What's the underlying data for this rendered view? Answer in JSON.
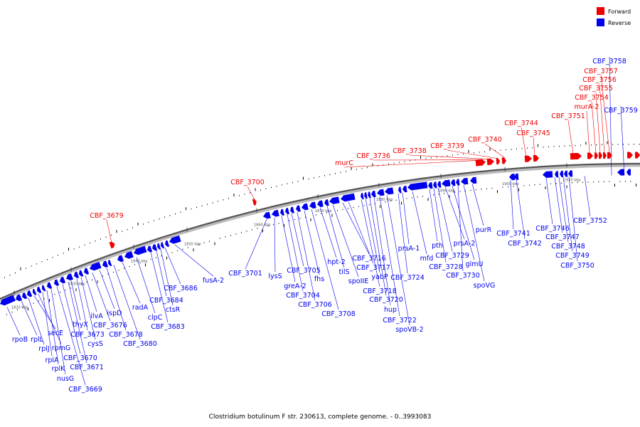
{
  "caption": "Clostridium botulinum F str. 230613, complete genome. - 0..3993083",
  "legend": [
    {
      "label": "Forward",
      "color": "#ee0000"
    },
    {
      "label": "Reverse",
      "color": "#0000ee"
    }
  ],
  "scale_ticks": [
    "1820 kbp",
    "1830 kbp",
    "1840 kbp",
    "1850 kbp",
    "1860 kbp",
    "1870 kbp",
    "1880 kbp",
    "1890 kbp",
    "1900 kbp",
    "1910 kbp"
  ],
  "forward_genes": [
    "CBF_3679",
    "CBF_3700",
    "murC",
    "CBF_3736",
    "CBF_3738",
    "CBF_3739",
    "CBF_3740",
    "CBF_3744",
    "CBF_3745",
    "CBF_3751",
    "murA-2",
    "CBF_3754",
    "CBF_3755",
    "CBF_3756",
    "CBF_3757"
  ],
  "reverse_genes": [
    "CBF_3758",
    "CBF_3759",
    "rpoB",
    "rplL",
    "rplJ",
    "secE",
    "rpmG",
    "rplA",
    "rplK",
    "nusG",
    "CBF_3669",
    "CBF_3670",
    "CBF_3671",
    "thyX",
    "CBF_3673",
    "cysS",
    "ilvA",
    "CBF_3676",
    "ispD",
    "CBF_3678",
    "CBF_3680",
    "radA",
    "clpC",
    "CBF_3683",
    "CBF_3684",
    "ctsR",
    "CBF_3686",
    "fusA-2",
    "CBF_3701",
    "lysS",
    "greA-2",
    "CBF_3704",
    "CBF_3705",
    "CBF_3706",
    "fhs",
    "CBF_3708",
    "hpt-2",
    "tilS",
    "spoIIE",
    "CBF_3716",
    "CBF_3717",
    "CBF_3718",
    "yabP",
    "CBF_3720",
    "hup",
    "CBF_3722",
    "spoVB-2",
    "CBF_3724",
    "prsA-1",
    "mfd",
    "pth",
    "CBF_3728",
    "CBF_3729",
    "prsA-2",
    "glmU",
    "CBF_3730",
    "spoVG",
    "purR",
    "CBF_3741",
    "CBF_3742",
    "CBF_3746",
    "CBF_3747",
    "CBF_3748",
    "CBF_3749",
    "CBF_3750",
    "CBF_3752"
  ]
}
